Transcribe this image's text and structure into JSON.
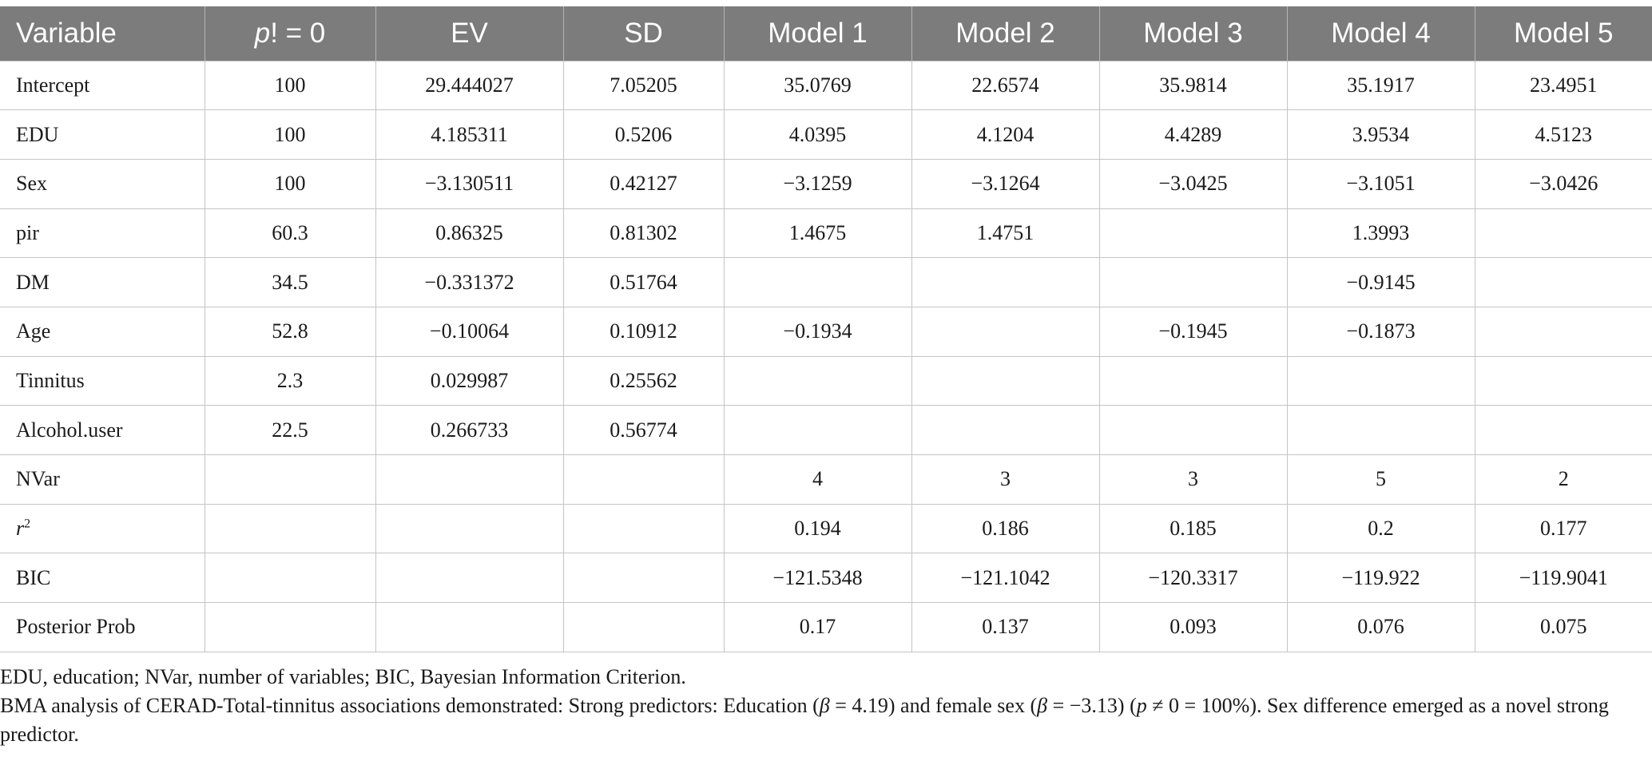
{
  "table": {
    "headers": [
      "Variable",
      "p! = 0",
      "EV",
      "SD",
      "Model 1",
      "Model 2",
      "Model 3",
      "Model 4",
      "Model 5"
    ],
    "rows": [
      {
        "variable": "Intercept",
        "p": "100",
        "ev": "29.444027",
        "sd": "7.05205",
        "m1": "35.0769",
        "m2": "22.6574",
        "m3": "35.9814",
        "m4": "35.1917",
        "m5": "23.4951"
      },
      {
        "variable": "EDU",
        "p": "100",
        "ev": "4.185311",
        "sd": "0.5206",
        "m1": "4.0395",
        "m2": "4.1204",
        "m3": "4.4289",
        "m4": "3.9534",
        "m5": "4.5123"
      },
      {
        "variable": "Sex",
        "p": "100",
        "ev": "−3.130511",
        "sd": "0.42127",
        "m1": "−3.1259",
        "m2": "−3.1264",
        "m3": "−3.0425",
        "m4": "−3.1051",
        "m5": "−3.0426"
      },
      {
        "variable": "pir",
        "p": "60.3",
        "ev": "0.86325",
        "sd": "0.81302",
        "m1": "1.4675",
        "m2": "1.4751",
        "m3": "",
        "m4": "1.3993",
        "m5": ""
      },
      {
        "variable": "DM",
        "p": "34.5",
        "ev": "−0.331372",
        "sd": "0.51764",
        "m1": "",
        "m2": "",
        "m3": "",
        "m4": "−0.9145",
        "m5": ""
      },
      {
        "variable": "Age",
        "p": "52.8",
        "ev": "−0.10064",
        "sd": "0.10912",
        "m1": "−0.1934",
        "m2": "",
        "m3": "−0.1945",
        "m4": "−0.1873",
        "m5": ""
      },
      {
        "variable": "Tinnitus",
        "p": "2.3",
        "ev": "0.029987",
        "sd": "0.25562",
        "m1": "",
        "m2": "",
        "m3": "",
        "m4": "",
        "m5": ""
      },
      {
        "variable": "Alcohol.user",
        "p": "22.5",
        "ev": "0.266733",
        "sd": "0.56774",
        "m1": "",
        "m2": "",
        "m3": "",
        "m4": "",
        "m5": ""
      },
      {
        "variable": "NVar",
        "p": "",
        "ev": "",
        "sd": "",
        "m1": "4",
        "m2": "3",
        "m3": "3",
        "m4": "5",
        "m5": "2"
      },
      {
        "variable": "r",
        "p": "",
        "ev": "",
        "sd": "",
        "m1": "0.194",
        "m2": "0.186",
        "m3": "0.185",
        "m4": "0.2",
        "m5": "0.177"
      },
      {
        "variable": "BIC",
        "p": "",
        "ev": "",
        "sd": "",
        "m1": "−121.5348",
        "m2": "−121.1042",
        "m3": "−120.3317",
        "m4": "−119.922",
        "m5": "−119.9041"
      },
      {
        "variable": "Posterior Prob",
        "p": "",
        "ev": "",
        "sd": "",
        "m1": "0.17",
        "m2": "0.137",
        "m3": "0.093",
        "m4": "0.076",
        "m5": "0.075"
      }
    ],
    "r2_superscript": "2"
  },
  "notes": {
    "abbreviations": "EDU, education; NVar, number of variables; BIC, Bayesian Information Criterion.",
    "summary": "BMA analysis of CERAD-Total-tinnitus associations demonstrated: Strong predictors: Education (β = 4.19) and female sex (β = −3.13) (p ≠ 0 = 100%). Sex difference emerged as a novel strong predictor."
  }
}
